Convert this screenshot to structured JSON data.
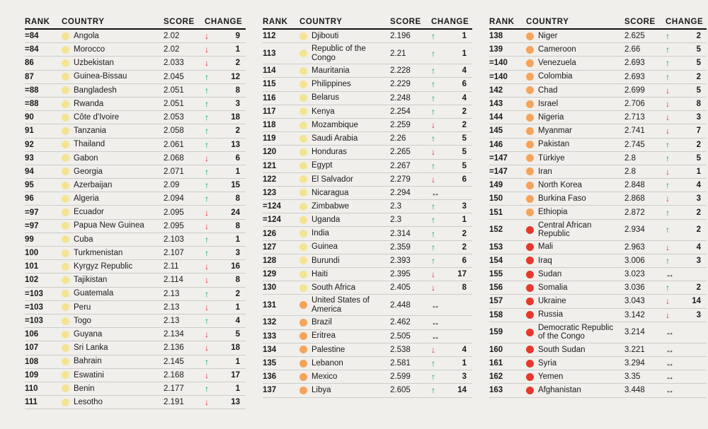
{
  "headers": {
    "rank": "RANK",
    "country": "COUNTRY",
    "score": "SCORE",
    "change": "CHANGE"
  },
  "legend_colors": {
    "yellow": "#f3e493",
    "orange": "#f4a45c",
    "red": "#e6392c",
    "up": "#00a14b",
    "down": "#e4232b",
    "same": "#1a1a1a"
  },
  "tables": [
    {
      "rows": [
        {
          "rank": "=84",
          "country": "Angola",
          "score": "2.02",
          "band": "yellow",
          "dir": "down",
          "change": "9"
        },
        {
          "rank": "=84",
          "country": "Morocco",
          "score": "2.02",
          "band": "yellow",
          "dir": "down",
          "change": "1"
        },
        {
          "rank": "86",
          "country": "Uzbekistan",
          "score": "2.033",
          "band": "yellow",
          "dir": "down",
          "change": "2"
        },
        {
          "rank": "87",
          "country": "Guinea-Bissau",
          "score": "2.045",
          "band": "yellow",
          "dir": "up",
          "change": "12"
        },
        {
          "rank": "=88",
          "country": "Bangladesh",
          "score": "2.051",
          "band": "yellow",
          "dir": "up",
          "change": "8"
        },
        {
          "rank": "=88",
          "country": "Rwanda",
          "score": "2.051",
          "band": "yellow",
          "dir": "up",
          "change": "3"
        },
        {
          "rank": "90",
          "country": "Côte d'Ivoire",
          "score": "2.053",
          "band": "yellow",
          "dir": "up",
          "change": "18"
        },
        {
          "rank": "91",
          "country": "Tanzania",
          "score": "2.058",
          "band": "yellow",
          "dir": "up",
          "change": "2"
        },
        {
          "rank": "92",
          "country": "Thailand",
          "score": "2.061",
          "band": "yellow",
          "dir": "up",
          "change": "13"
        },
        {
          "rank": "93",
          "country": "Gabon",
          "score": "2.068",
          "band": "yellow",
          "dir": "down",
          "change": "6"
        },
        {
          "rank": "94",
          "country": "Georgia",
          "score": "2.071",
          "band": "yellow",
          "dir": "up",
          "change": "1"
        },
        {
          "rank": "95",
          "country": "Azerbaijan",
          "score": "2.09",
          "band": "yellow",
          "dir": "up",
          "change": "15"
        },
        {
          "rank": "96",
          "country": "Algeria",
          "score": "2.094",
          "band": "yellow",
          "dir": "up",
          "change": "8"
        },
        {
          "rank": "=97",
          "country": "Ecuador",
          "score": "2.095",
          "band": "yellow",
          "dir": "down",
          "change": "24"
        },
        {
          "rank": "=97",
          "country": "Papua New Guinea",
          "score": "2.095",
          "band": "yellow",
          "dir": "down",
          "change": "8"
        },
        {
          "rank": "99",
          "country": "Cuba",
          "score": "2.103",
          "band": "yellow",
          "dir": "up",
          "change": "1"
        },
        {
          "rank": "100",
          "country": "Turkmenistan",
          "score": "2.107",
          "band": "yellow",
          "dir": "up",
          "change": "3"
        },
        {
          "rank": "101",
          "country": "Kyrgyz Republic",
          "score": "2.11",
          "band": "yellow",
          "dir": "down",
          "change": "16"
        },
        {
          "rank": "102",
          "country": "Tajikistan",
          "score": "2.114",
          "band": "yellow",
          "dir": "down",
          "change": "8"
        },
        {
          "rank": "=103",
          "country": "Guatemala",
          "score": "2.13",
          "band": "yellow",
          "dir": "up",
          "change": "2"
        },
        {
          "rank": "=103",
          "country": "Peru",
          "score": "2.13",
          "band": "yellow",
          "dir": "down",
          "change": "1"
        },
        {
          "rank": "=103",
          "country": "Togo",
          "score": "2.13",
          "band": "yellow",
          "dir": "up",
          "change": "4"
        },
        {
          "rank": "106",
          "country": "Guyana",
          "score": "2.134",
          "band": "yellow",
          "dir": "down",
          "change": "5"
        },
        {
          "rank": "107",
          "country": "Sri Lanka",
          "score": "2.136",
          "band": "yellow",
          "dir": "down",
          "change": "18"
        },
        {
          "rank": "108",
          "country": "Bahrain",
          "score": "2.145",
          "band": "yellow",
          "dir": "up",
          "change": "1"
        },
        {
          "rank": "109",
          "country": "Eswatini",
          "score": "2.168",
          "band": "yellow",
          "dir": "down",
          "change": "17"
        },
        {
          "rank": "110",
          "country": "Benin",
          "score": "2.177",
          "band": "yellow",
          "dir": "up",
          "change": "1"
        },
        {
          "rank": "111",
          "country": "Lesotho",
          "score": "2.191",
          "band": "yellow",
          "dir": "down",
          "change": "13"
        }
      ]
    },
    {
      "rows": [
        {
          "rank": "112",
          "country": "Djibouti",
          "score": "2.196",
          "band": "yellow",
          "dir": "up",
          "change": "1"
        },
        {
          "rank": "113",
          "country": "Republic of the Congo",
          "score": "2.21",
          "band": "yellow",
          "dir": "up",
          "change": "1"
        },
        {
          "rank": "114",
          "country": "Mauritania",
          "score": "2.228",
          "band": "yellow",
          "dir": "up",
          "change": "4"
        },
        {
          "rank": "115",
          "country": "Philippines",
          "score": "2.229",
          "band": "yellow",
          "dir": "up",
          "change": "6"
        },
        {
          "rank": "116",
          "country": "Belarus",
          "score": "2.248",
          "band": "yellow",
          "dir": "up",
          "change": "4"
        },
        {
          "rank": "117",
          "country": "Kenya",
          "score": "2.254",
          "band": "yellow",
          "dir": "up",
          "change": "2"
        },
        {
          "rank": "118",
          "country": "Mozambique",
          "score": "2.259",
          "band": "yellow",
          "dir": "down",
          "change": "2"
        },
        {
          "rank": "119",
          "country": "Saudi Arabia",
          "score": "2.26",
          "band": "yellow",
          "dir": "up",
          "change": "5"
        },
        {
          "rank": "120",
          "country": "Honduras",
          "score": "2.265",
          "band": "yellow",
          "dir": "down",
          "change": "5"
        },
        {
          "rank": "121",
          "country": "Egypt",
          "score": "2.267",
          "band": "yellow",
          "dir": "up",
          "change": "5"
        },
        {
          "rank": "122",
          "country": "El Salvador",
          "score": "2.279",
          "band": "yellow",
          "dir": "down",
          "change": "6"
        },
        {
          "rank": "123",
          "country": "Nicaragua",
          "score": "2.294",
          "band": "yellow",
          "dir": "same",
          "change": ""
        },
        {
          "rank": "=124",
          "country": "Zimbabwe",
          "score": "2.3",
          "band": "yellow",
          "dir": "up",
          "change": "3"
        },
        {
          "rank": "=124",
          "country": "Uganda",
          "score": "2.3",
          "band": "yellow",
          "dir": "up",
          "change": "1"
        },
        {
          "rank": "126",
          "country": "India",
          "score": "2.314",
          "band": "yellow",
          "dir": "up",
          "change": "2"
        },
        {
          "rank": "127",
          "country": "Guinea",
          "score": "2.359",
          "band": "yellow",
          "dir": "up",
          "change": "2"
        },
        {
          "rank": "128",
          "country": "Burundi",
          "score": "2.393",
          "band": "yellow",
          "dir": "up",
          "change": "6"
        },
        {
          "rank": "129",
          "country": "Haiti",
          "score": "2.395",
          "band": "yellow",
          "dir": "down",
          "change": "17"
        },
        {
          "rank": "130",
          "country": "South Africa",
          "score": "2.405",
          "band": "yellow",
          "dir": "down",
          "change": "8"
        },
        {
          "rank": "131",
          "country": "United States of America",
          "score": "2.448",
          "band": "orange",
          "dir": "same",
          "change": ""
        },
        {
          "rank": "132",
          "country": "Brazil",
          "score": "2.462",
          "band": "orange",
          "dir": "same",
          "change": ""
        },
        {
          "rank": "133",
          "country": "Eritrea",
          "score": "2.505",
          "band": "orange",
          "dir": "same",
          "change": ""
        },
        {
          "rank": "134",
          "country": "Palestine",
          "score": "2.538",
          "band": "orange",
          "dir": "down",
          "change": "4"
        },
        {
          "rank": "135",
          "country": "Lebanon",
          "score": "2.581",
          "band": "orange",
          "dir": "up",
          "change": "1"
        },
        {
          "rank": "136",
          "country": "Mexico",
          "score": "2.599",
          "band": "orange",
          "dir": "up",
          "change": "3"
        },
        {
          "rank": "137",
          "country": "Libya",
          "score": "2.605",
          "band": "orange",
          "dir": "up",
          "change": "14"
        }
      ]
    },
    {
      "rows": [
        {
          "rank": "138",
          "country": "Niger",
          "score": "2.625",
          "band": "orange",
          "dir": "up",
          "change": "2"
        },
        {
          "rank": "139",
          "country": "Cameroon",
          "score": "2.66",
          "band": "orange",
          "dir": "up",
          "change": "5"
        },
        {
          "rank": "=140",
          "country": "Venezuela",
          "score": "2.693",
          "band": "orange",
          "dir": "up",
          "change": "5"
        },
        {
          "rank": "=140",
          "country": "Colombia",
          "score": "2.693",
          "band": "orange",
          "dir": "up",
          "change": "2"
        },
        {
          "rank": "142",
          "country": "Chad",
          "score": "2.699",
          "band": "orange",
          "dir": "down",
          "change": "5"
        },
        {
          "rank": "143",
          "country": "Israel",
          "score": "2.706",
          "band": "orange",
          "dir": "down",
          "change": "8"
        },
        {
          "rank": "144",
          "country": "Nigeria",
          "score": "2.713",
          "band": "orange",
          "dir": "down",
          "change": "3"
        },
        {
          "rank": "145",
          "country": "Myanmar",
          "score": "2.741",
          "band": "orange",
          "dir": "down",
          "change": "7"
        },
        {
          "rank": "146",
          "country": "Pakistan",
          "score": "2.745",
          "band": "orange",
          "dir": "up",
          "change": "2"
        },
        {
          "rank": "=147",
          "country": "Türkiye",
          "score": "2.8",
          "band": "orange",
          "dir": "up",
          "change": "5"
        },
        {
          "rank": "=147",
          "country": "Iran",
          "score": "2.8",
          "band": "orange",
          "dir": "down",
          "change": "1"
        },
        {
          "rank": "149",
          "country": "North Korea",
          "score": "2.848",
          "band": "orange",
          "dir": "up",
          "change": "4"
        },
        {
          "rank": "150",
          "country": "Burkina Faso",
          "score": "2.868",
          "band": "orange",
          "dir": "down",
          "change": "3"
        },
        {
          "rank": "151",
          "country": "Ethiopia",
          "score": "2.872",
          "band": "orange",
          "dir": "up",
          "change": "2"
        },
        {
          "rank": "152",
          "country": "Central African Republic",
          "score": "2.934",
          "band": "red",
          "dir": "up",
          "change": "2"
        },
        {
          "rank": "153",
          "country": "Mali",
          "score": "2.963",
          "band": "red",
          "dir": "down",
          "change": "4"
        },
        {
          "rank": "154",
          "country": "Iraq",
          "score": "3.006",
          "band": "red",
          "dir": "up",
          "change": "3"
        },
        {
          "rank": "155",
          "country": "Sudan",
          "score": "3.023",
          "band": "red",
          "dir": "same",
          "change": ""
        },
        {
          "rank": "156",
          "country": "Somalia",
          "score": "3.036",
          "band": "red",
          "dir": "up",
          "change": "2"
        },
        {
          "rank": "157",
          "country": "Ukraine",
          "score": "3.043",
          "band": "red",
          "dir": "down",
          "change": "14"
        },
        {
          "rank": "158",
          "country": "Russia",
          "score": "3.142",
          "band": "red",
          "dir": "down",
          "change": "3"
        },
        {
          "rank": "159",
          "country": "Democratic Republic of the Congo",
          "score": "3.214",
          "band": "red",
          "dir": "same",
          "change": ""
        },
        {
          "rank": "160",
          "country": "South Sudan",
          "score": "3.221",
          "band": "red",
          "dir": "same",
          "change": ""
        },
        {
          "rank": "161",
          "country": "Syria",
          "score": "3.294",
          "band": "red",
          "dir": "same",
          "change": ""
        },
        {
          "rank": "162",
          "country": "Yemen",
          "score": "3.35",
          "band": "red",
          "dir": "same",
          "change": ""
        },
        {
          "rank": "163",
          "country": "Afghanistan",
          "score": "3.448",
          "band": "red",
          "dir": "same",
          "change": ""
        }
      ]
    }
  ]
}
